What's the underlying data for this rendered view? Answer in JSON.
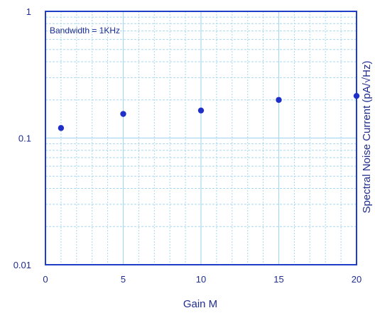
{
  "chart_data": {
    "type": "scatter",
    "title": "",
    "xlabel": "Gain M",
    "ylabel": "Spectral Noise Current (pA/√Hz)",
    "annotation": "Bandwidth = 1KHz",
    "xlim": [
      0,
      20
    ],
    "ylim": [
      0.01,
      1
    ],
    "y_scale": "log",
    "x_ticks": [
      0,
      5,
      10,
      15,
      20
    ],
    "x_tick_labels": [
      "0",
      "5",
      "10",
      "15",
      "20"
    ],
    "y_ticks": [
      0.01,
      0.1,
      1
    ],
    "y_tick_labels": [
      "0.01",
      "0.1",
      "1"
    ],
    "grid": true,
    "colors": {
      "axis": "#1f3ec8",
      "grid": "#a9d8ef",
      "point": "#1f2fc8",
      "text": "#1f2d8f"
    },
    "series": [
      {
        "x": [
          1,
          5,
          10,
          15,
          20
        ],
        "y": [
          0.12,
          0.155,
          0.165,
          0.2,
          0.215
        ]
      }
    ]
  }
}
